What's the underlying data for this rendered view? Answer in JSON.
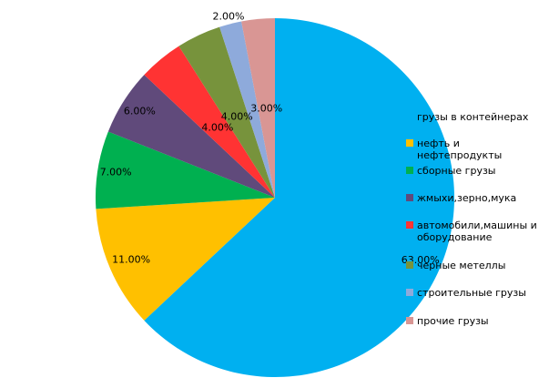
{
  "chart_data": {
    "type": "pie",
    "categories": [
      "грузы в контейнерах",
      "нефть и нефтепродукты",
      "сборные грузы",
      "жмыхи,зерно,мука",
      "автомобили,машины и оборудование",
      "черные метеллы",
      "строительные грузы",
      "прочие грузы"
    ],
    "values": [
      63,
      11,
      7,
      6,
      4,
      4,
      2,
      3
    ],
    "value_labels": [
      "63.00%",
      "11.00%",
      "7.00%",
      "6.00%",
      "4.00%",
      "4.00%",
      "2.00%",
      "3.00%"
    ],
    "colors": [
      "#00b0f0",
      "#ffc000",
      "#00b050",
      "#604a7b",
      "#ff3333",
      "#77933c",
      "#8eaadb",
      "#d99694"
    ],
    "legend": "right"
  }
}
